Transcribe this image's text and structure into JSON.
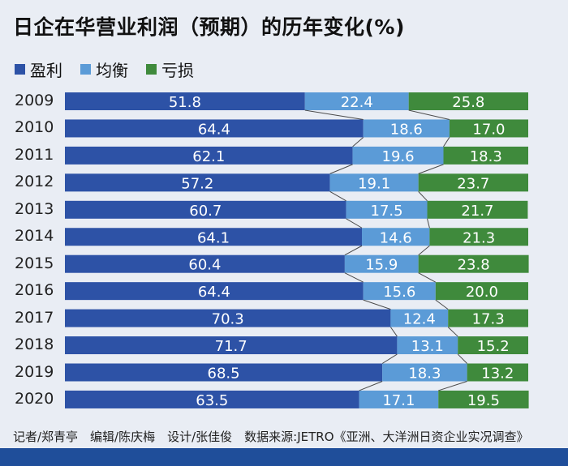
{
  "title": "日企在华营业利润（预期）的历年变化(%)",
  "colors": {
    "profit": "#2d52a6",
    "balance": "#5b9bd7",
    "loss": "#3f8a3c",
    "connector": "#4a4a4a",
    "bottom_bar": "#1f4e9a"
  },
  "footer": "记者/郑青亭　编辑/陈庆梅　设计/张佳俊　数据来源:JETRO《亚洲、大洋洲日资企业实况调查》",
  "chart_data": {
    "type": "bar",
    "orientation": "horizontal",
    "stacked": true,
    "normalized_100": true,
    "legend_position": "top-left",
    "grid": false,
    "xlim": [
      0,
      100
    ],
    "categories": [
      "2009",
      "2010",
      "2011",
      "2012",
      "2013",
      "2014",
      "2015",
      "2016",
      "2017",
      "2018",
      "2019",
      "2020"
    ],
    "series": [
      {
        "name": "盈利",
        "color": "#2d52a6",
        "values": [
          51.8,
          64.4,
          62.1,
          57.2,
          60.7,
          64.1,
          60.4,
          64.4,
          70.3,
          71.7,
          68.5,
          63.5
        ]
      },
      {
        "name": "均衡",
        "color": "#5b9bd7",
        "values": [
          22.4,
          18.6,
          19.6,
          19.1,
          17.5,
          14.6,
          15.9,
          15.6,
          12.4,
          13.1,
          18.3,
          17.1
        ]
      },
      {
        "name": "亏损",
        "color": "#3f8a3c",
        "values": [
          25.8,
          17.0,
          18.3,
          23.7,
          21.7,
          21.3,
          23.8,
          20.0,
          17.3,
          15.2,
          13.2,
          19.5
        ]
      }
    ]
  }
}
